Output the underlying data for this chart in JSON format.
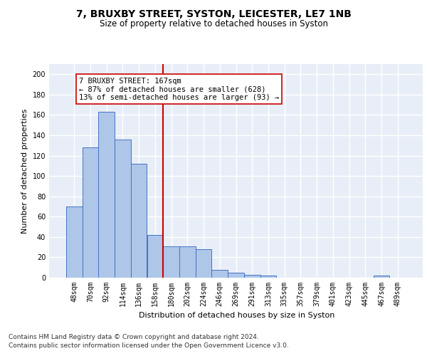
{
  "title1": "7, BRUXBY STREET, SYSTON, LEICESTER, LE7 1NB",
  "title2": "Size of property relative to detached houses in Syston",
  "xlabel": "Distribution of detached houses by size in Syston",
  "ylabel": "Number of detached properties",
  "bar_labels": [
    "48sqm",
    "70sqm",
    "92sqm",
    "114sqm",
    "136sqm",
    "158sqm",
    "180sqm",
    "202sqm",
    "224sqm",
    "246sqm",
    "269sqm",
    "291sqm",
    "313sqm",
    "335sqm",
    "357sqm",
    "379sqm",
    "401sqm",
    "423sqm",
    "445sqm",
    "467sqm",
    "489sqm"
  ],
  "bar_heights": [
    70,
    128,
    163,
    136,
    112,
    42,
    31,
    31,
    28,
    8,
    5,
    3,
    2,
    0,
    0,
    0,
    0,
    0,
    0,
    2,
    0
  ],
  "bar_color": "#aec6e8",
  "bar_edge_color": "#4472c4",
  "background_color": "#e8eef7",
  "grid_color": "#ffffff",
  "vline_x": 5.5,
  "vline_color": "#cc0000",
  "annotation_text": "7 BRUXBY STREET: 167sqm\n← 87% of detached houses are smaller (628)\n13% of semi-detached houses are larger (93) →",
  "annotation_box_color": "#ffffff",
  "annotation_box_edge_color": "#cc0000",
  "ylim": [
    0,
    210
  ],
  "yticks": [
    0,
    20,
    40,
    60,
    80,
    100,
    120,
    140,
    160,
    180,
    200
  ],
  "footer1": "Contains HM Land Registry data © Crown copyright and database right 2024.",
  "footer2": "Contains public sector information licensed under the Open Government Licence v3.0.",
  "title1_fontsize": 10,
  "title2_fontsize": 8.5,
  "xlabel_fontsize": 8,
  "ylabel_fontsize": 8,
  "tick_fontsize": 7,
  "annotation_fontsize": 7.5,
  "footer_fontsize": 6.5
}
